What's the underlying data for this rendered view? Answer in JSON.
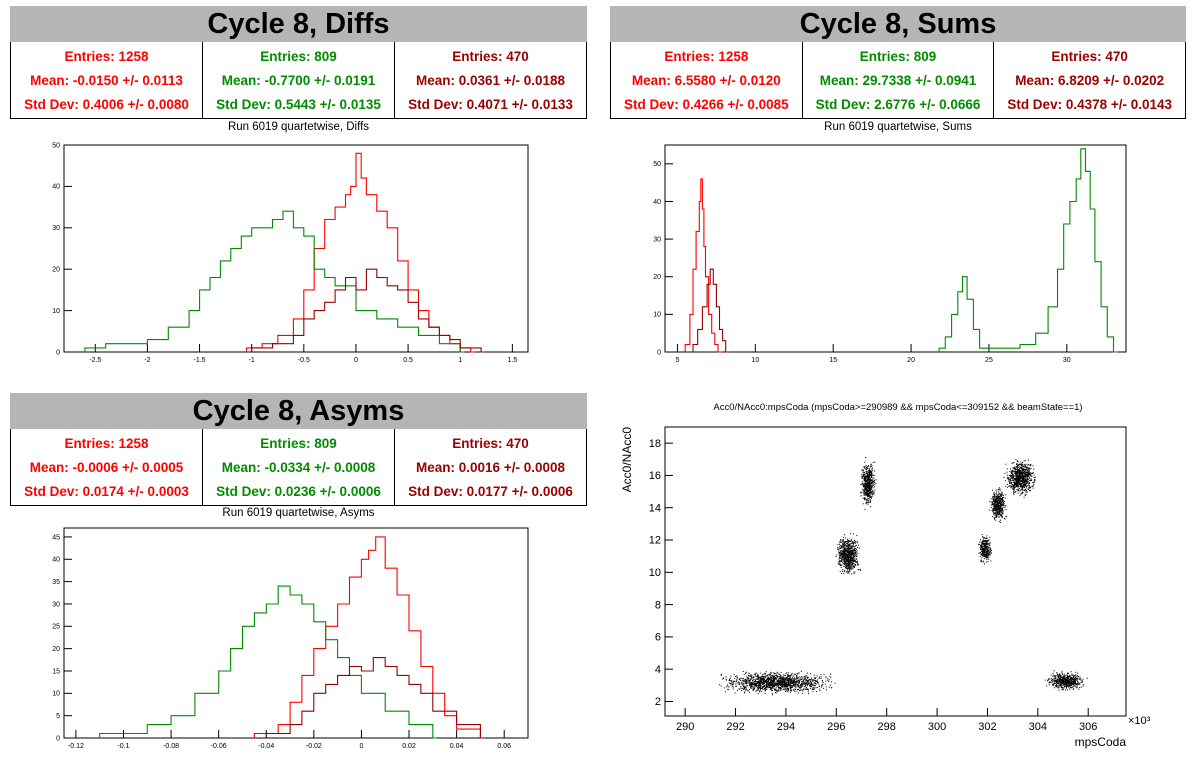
{
  "colors": {
    "series1": "#ff0000",
    "series2": "#008c00",
    "series3": "#990000",
    "title_bg": "#b5b5b5"
  },
  "panels": [
    {
      "title": "Cycle 8, Diffs",
      "subtitle": "Run 6019 quartetwise, Diffs",
      "stats": [
        {
          "entries": "Entries: 1258",
          "mean": "Mean: -0.0150 +/- 0.0113",
          "std": "Std Dev: 0.4006 +/- 0.0080"
        },
        {
          "entries": "Entries: 809",
          "mean": "Mean: -0.7700 +/- 0.0191",
          "std": "Std Dev: 0.5443 +/- 0.0135"
        },
        {
          "entries": "Entries: 470",
          "mean": "Mean: 0.0361 +/- 0.0188",
          "std": "Std Dev: 0.4071 +/- 0.0133"
        }
      ]
    },
    {
      "title": "Cycle 8, Sums",
      "subtitle": "Run 6019 quartetwise, Sums",
      "stats": [
        {
          "entries": "Entries: 1258",
          "mean": "Mean: 6.5580 +/- 0.0120",
          "std": "Std Dev: 0.4266 +/- 0.0085"
        },
        {
          "entries": "Entries: 809",
          "mean": "Mean: 29.7338 +/- 0.0941",
          "std": "Std Dev: 2.6776 +/- 0.0666"
        },
        {
          "entries": "Entries: 470",
          "mean": "Mean: 6.8209 +/- 0.0202",
          "std": "Std Dev: 0.4378 +/- 0.0143"
        }
      ]
    },
    {
      "title": "Cycle 8, Asyms",
      "subtitle": "Run 6019 quartetwise, Asyms",
      "stats": [
        {
          "entries": "Entries: 1258",
          "mean": "Mean: -0.0006 +/- 0.0005",
          "std": "Std Dev: 0.0174 +/- 0.0003"
        },
        {
          "entries": "Entries: 809",
          "mean": "Mean: -0.0334 +/- 0.0008",
          "std": "Std Dev: 0.0236 +/- 0.0006"
        },
        {
          "entries": "Entries: 470",
          "mean": "Mean: 0.0016 +/- 0.0008",
          "std": "Std Dev: 0.0177 +/- 0.0006"
        }
      ]
    },
    {
      "title": "Acc0/NAcc0:mpsCoda (mpsCoda>=290989 && mpsCoda<=309152 && beamState==1)"
    }
  ],
  "chart_data": [
    {
      "type": "histogram",
      "name": "diffs",
      "xlim": [
        -2.8,
        1.65
      ],
      "ylim": [
        0,
        50
      ],
      "xticks": [
        -2.5,
        -2,
        -1.5,
        -1,
        -0.5,
        0,
        0.5,
        1,
        1.5
      ],
      "xtick_labels": [
        "-2.5",
        "-2",
        "-1.5",
        "-1",
        "-0.5",
        "0",
        "0.5",
        "1",
        "1.5"
      ],
      "yticks": [
        0,
        10,
        20,
        30,
        40,
        50
      ],
      "ytick_labels": [
        "0",
        "10",
        "20",
        "30",
        "40",
        "50"
      ],
      "series": [
        {
          "color": "series1",
          "x": [
            -1.05,
            -0.9,
            -0.75,
            -0.6,
            -0.5,
            -0.4,
            -0.3,
            -0.2,
            -0.1,
            -0.05,
            0,
            0.05,
            0.1,
            0.2,
            0.3,
            0.4,
            0.5,
            0.6,
            0.7,
            0.8,
            0.9,
            1.0,
            1.1
          ],
          "y": [
            1,
            2,
            4,
            8,
            15,
            25,
            32,
            35,
            38,
            40,
            48,
            42,
            38,
            34,
            30,
            22,
            15,
            10,
            6,
            4,
            2,
            1,
            0
          ]
        },
        {
          "color": "series2",
          "x": [
            -2.6,
            -2.4,
            -2.2,
            -2.0,
            -1.8,
            -1.6,
            -1.5,
            -1.4,
            -1.3,
            -1.2,
            -1.1,
            -1.0,
            -0.9,
            -0.8,
            -0.7,
            -0.6,
            -0.5,
            -0.4,
            -0.3,
            -0.2,
            0,
            0.2,
            0.4,
            0.6,
            0.8,
            1.0
          ],
          "y": [
            1,
            2,
            2,
            3,
            6,
            10,
            15,
            18,
            22,
            25,
            28,
            30,
            30,
            32,
            34,
            30,
            28,
            20,
            18,
            16,
            10,
            8,
            6,
            4,
            2,
            0
          ]
        },
        {
          "color": "series3",
          "x": [
            -1.0,
            -0.8,
            -0.6,
            -0.5,
            -0.4,
            -0.3,
            -0.2,
            -0.1,
            0,
            0.1,
            0.2,
            0.3,
            0.4,
            0.5,
            0.6,
            0.7,
            0.8,
            0.9,
            1.0,
            1.2
          ],
          "y": [
            1,
            2,
            4,
            8,
            10,
            12,
            15,
            18,
            15,
            20,
            18,
            16,
            15,
            12,
            8,
            6,
            4,
            3,
            1,
            0
          ]
        }
      ]
    },
    {
      "type": "histogram",
      "name": "sums",
      "xlim": [
        4.2,
        33.8
      ],
      "ylim": [
        0,
        55
      ],
      "xticks": [
        5,
        10,
        15,
        20,
        25,
        30
      ],
      "xtick_labels": [
        "5",
        "10",
        "15",
        "20",
        "25",
        "30"
      ],
      "yticks": [
        0,
        10,
        20,
        30,
        40,
        50
      ],
      "ytick_labels": [
        "0",
        "10",
        "20",
        "30",
        "40",
        "50"
      ],
      "series": [
        {
          "color": "series1",
          "x": [
            5.5,
            5.8,
            6.0,
            6.2,
            6.4,
            6.5,
            6.6,
            6.7,
            6.8,
            7.0,
            7.2,
            7.4,
            7.6
          ],
          "y": [
            2,
            10,
            22,
            32,
            40,
            46,
            38,
            28,
            20,
            10,
            5,
            2,
            0
          ]
        },
        {
          "color": "series2",
          "x": [
            21.8,
            22.2,
            22.6,
            23.0,
            23.3,
            23.6,
            24.0,
            24.4,
            26.0,
            27.0,
            28.0,
            28.8,
            29.4,
            29.8,
            30.2,
            30.6,
            30.9,
            31.2,
            31.5,
            31.8,
            32.2,
            32.6,
            33.0
          ],
          "y": [
            1,
            4,
            10,
            16,
            20,
            14,
            6,
            1,
            1,
            2,
            5,
            12,
            22,
            34,
            40,
            46,
            54,
            48,
            38,
            24,
            12,
            4,
            0
          ]
        },
        {
          "color": "series3",
          "x": [
            6.0,
            6.3,
            6.6,
            6.9,
            7.1,
            7.3,
            7.5,
            7.7,
            7.9,
            8.1
          ],
          "y": [
            2,
            6,
            12,
            18,
            22,
            18,
            12,
            6,
            3,
            0
          ]
        }
      ]
    },
    {
      "type": "histogram",
      "name": "asyms",
      "xlim": [
        -0.125,
        0.07
      ],
      "ylim": [
        0,
        47
      ],
      "xticks": [
        -0.12,
        -0.1,
        -0.08,
        -0.06,
        -0.04,
        -0.02,
        0,
        0.02,
        0.04,
        0.06
      ],
      "xtick_labels": [
        "-0.12",
        "-0.1",
        "-0.08",
        "-0.06",
        "-0.04",
        "-0.02",
        "0",
        "0.02",
        "0.04",
        "0.06"
      ],
      "yticks": [
        0,
        5,
        10,
        15,
        20,
        25,
        30,
        35,
        40,
        45
      ],
      "ytick_labels": [
        "0",
        "5",
        "10",
        "15",
        "20",
        "25",
        "30",
        "35",
        "40",
        "45"
      ],
      "series": [
        {
          "color": "series1",
          "x": [
            -0.045,
            -0.035,
            -0.03,
            -0.025,
            -0.02,
            -0.015,
            -0.01,
            -0.005,
            0,
            0.003,
            0.006,
            0.01,
            0.015,
            0.02,
            0.025,
            0.03,
            0.035,
            0.04,
            0.05
          ],
          "y": [
            1,
            3,
            8,
            14,
            20,
            25,
            30,
            36,
            40,
            42,
            45,
            38,
            32,
            24,
            16,
            10,
            5,
            2,
            0
          ]
        },
        {
          "color": "series2",
          "x": [
            -0.11,
            -0.09,
            -0.08,
            -0.07,
            -0.06,
            -0.055,
            -0.05,
            -0.045,
            -0.04,
            -0.035,
            -0.03,
            -0.025,
            -0.02,
            -0.015,
            -0.01,
            -0.005,
            0,
            0.01,
            0.02,
            0.03
          ],
          "y": [
            1,
            3,
            5,
            10,
            15,
            20,
            25,
            28,
            30,
            34,
            32,
            30,
            26,
            22,
            18,
            14,
            10,
            6,
            3,
            0
          ]
        },
        {
          "color": "series3",
          "x": [
            -0.04,
            -0.03,
            -0.025,
            -0.02,
            -0.015,
            -0.01,
            -0.005,
            0,
            0.005,
            0.01,
            0.015,
            0.02,
            0.025,
            0.03,
            0.04,
            0.05
          ],
          "y": [
            1,
            3,
            6,
            10,
            12,
            14,
            16,
            15,
            18,
            16,
            14,
            12,
            10,
            6,
            3,
            0
          ]
        }
      ]
    },
    {
      "type": "scatter",
      "name": "acc0",
      "xlabel": "mpsCoda",
      "ylabel": "Acc0/NAcc0",
      "x_multiplier": "×10³",
      "xlim": [
        289.2,
        307.5
      ],
      "ylim": [
        1.1,
        19.0
      ],
      "xticks": [
        290,
        292,
        294,
        296,
        298,
        300,
        302,
        304,
        306
      ],
      "xtick_labels": [
        "290",
        "292",
        "294",
        "296",
        "298",
        "300",
        "302",
        "304",
        "306"
      ],
      "yticks": [
        2,
        4,
        6,
        8,
        10,
        12,
        14,
        16,
        18
      ],
      "ytick_labels": [
        "2",
        "4",
        "6",
        "8",
        "10",
        "12",
        "14",
        "16",
        "18"
      ],
      "clusters": [
        {
          "x": [
            291.0,
            296.2
          ],
          "y": [
            2.4,
            4.0
          ]
        },
        {
          "x": [
            295.9,
            297.0
          ],
          "y": [
            9.6,
            12.6
          ]
        },
        {
          "x": [
            296.9,
            297.6
          ],
          "y": [
            13.8,
            17.2
          ]
        },
        {
          "x": [
            301.6,
            302.2
          ],
          "y": [
            10.4,
            12.6
          ]
        },
        {
          "x": [
            302.0,
            302.8
          ],
          "y": [
            13.0,
            15.4
          ]
        },
        {
          "x": [
            302.6,
            304.0
          ],
          "y": [
            14.6,
            17.2
          ]
        },
        {
          "x": [
            304.2,
            306.0
          ],
          "y": [
            2.6,
            4.0
          ]
        }
      ]
    }
  ]
}
